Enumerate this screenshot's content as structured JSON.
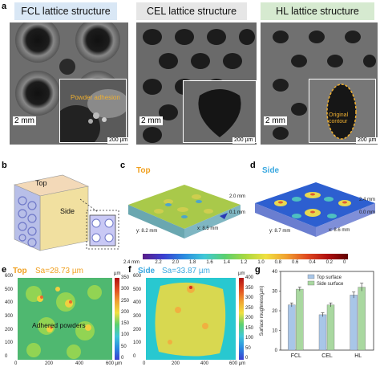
{
  "panels": {
    "a": {
      "letter": "a",
      "titles": [
        "FCL  lattice structure",
        "CEL  lattice structure",
        "HL lattice structure"
      ],
      "title_colors": [
        "#d9e7f5",
        "#e6e6e6",
        "#d6ead0"
      ],
      "scale_main": "2 mm",
      "scale_inset": "200 µm",
      "annotations": [
        "Powder adhesion",
        "Original contour"
      ]
    },
    "b": {
      "letter": "b",
      "top": "Top",
      "side": "Side"
    },
    "c": {
      "letter": "c",
      "tag": "Top",
      "z_top": "2.0 mm",
      "z_bot": "0.1 mm",
      "x_label": "x: 8.5 mm",
      "y_label": "y: 8.2 mm"
    },
    "d": {
      "letter": "d",
      "tag": "Side",
      "z_top": "2.4 mm",
      "z_bot": "0.0 mm",
      "x_label": "x: 8.6 mm",
      "y_label": "y: 8.7 mm"
    },
    "colorbar": {
      "ticks": [
        "2.4 mm",
        "2.2",
        "2.0",
        "1.8",
        "1.6",
        "1.4",
        "1.2",
        "1.0",
        "0.8",
        "0.6",
        "0.4",
        "0.2",
        "0"
      ]
    },
    "e": {
      "letter": "e",
      "tag": "Top",
      "sa": "Sa=28.73 µm",
      "annotation": "Adhered powders",
      "y_ticks": [
        "600",
        "500",
        "400",
        "300",
        "200",
        "100",
        "0"
      ],
      "x_ticks": [
        "0",
        "200",
        "400",
        "600 µm"
      ],
      "unit_top": "µm",
      "cb_ticks": [
        "350",
        "300",
        "250",
        "200",
        "150",
        "100",
        "50",
        "0"
      ]
    },
    "f": {
      "letter": "f",
      "tag": "Side",
      "sa": "Sa=33.87 µm",
      "y_ticks": [
        "600",
        "500",
        "400",
        "300",
        "200",
        "100",
        "0"
      ],
      "x_ticks": [
        "0",
        "200",
        "400",
        "600 µm"
      ],
      "unit_top": "µm",
      "cb_ticks": [
        "400",
        "350",
        "300",
        "250",
        "200",
        "150",
        "100",
        "50",
        "0"
      ]
    },
    "g": {
      "letter": "g"
    }
  },
  "chart_data": {
    "type": "bar",
    "categories": [
      "FCL",
      "CEL",
      "HL"
    ],
    "series": [
      {
        "name": "Top surface",
        "values": [
          23,
          18,
          28
        ],
        "errors": [
          1,
          1,
          1.5
        ],
        "color": "#a8c6e8"
      },
      {
        "name": "Side surface",
        "values": [
          31,
          23,
          32
        ],
        "errors": [
          1,
          1,
          2
        ],
        "color": "#a9d8a0"
      }
    ],
    "ylabel": "Surface roughness(µm)",
    "ylim": [
      0,
      40
    ],
    "yticks": [
      0,
      10,
      20,
      30,
      40
    ],
    "legend": "top-center"
  }
}
